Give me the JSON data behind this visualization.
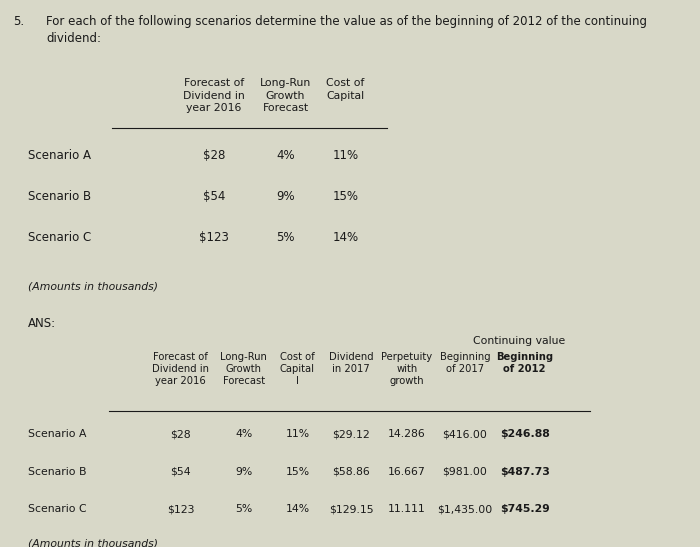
{
  "title_number": "5.",
  "title_text": "For each of the following scenarios determine the value as of the beginning of 2012 of the continuing\ndividend:",
  "background_color": "#d8d8c8",
  "text_color": "#1a1a1a",
  "top_table": {
    "header_col1": "Forecast of\nDividend in\nyear 2016",
    "header_col2": "Long-Run\nGrowth\nForecast",
    "header_col3": "Cost of\nCapital",
    "rows": [
      [
        "Scenario A",
        "$28",
        "4%",
        "11%"
      ],
      [
        "Scenario B",
        "$54",
        "9%",
        "15%"
      ],
      [
        "Scenario C",
        "$123",
        "5%",
        "14%"
      ]
    ],
    "footer": "(Amounts in thousands)"
  },
  "ans_label": "ANS:",
  "bottom_table": {
    "continuing_value_label": "Continuing value",
    "header_col1": "Forecast of\nDividend in\nyear 2016",
    "header_col2": "Long-Run\nGrowth\nForecast",
    "header_col3": "Cost of\nCapital\nI",
    "header_col4": "Dividend\nin 2017",
    "header_col5": "Perpetuity\nwith\ngrowth",
    "header_col6": "Beginning\nof 2017",
    "header_col7": "Beginning\nof 2012",
    "rows": [
      [
        "Scenario A",
        "$28",
        "4%",
        "11%",
        "$29.12",
        "14.286",
        "$416.00",
        "$246.88"
      ],
      [
        "Scenario B",
        "$54",
        "9%",
        "15%",
        "$58.86",
        "16.667",
        "$981.00",
        "$487.73"
      ],
      [
        "Scenario C",
        "$123",
        "5%",
        "14%",
        "$129.15",
        "11.111",
        "$1,435.00",
        "$745.29"
      ]
    ],
    "footer": "(Amounts in thousands)"
  }
}
